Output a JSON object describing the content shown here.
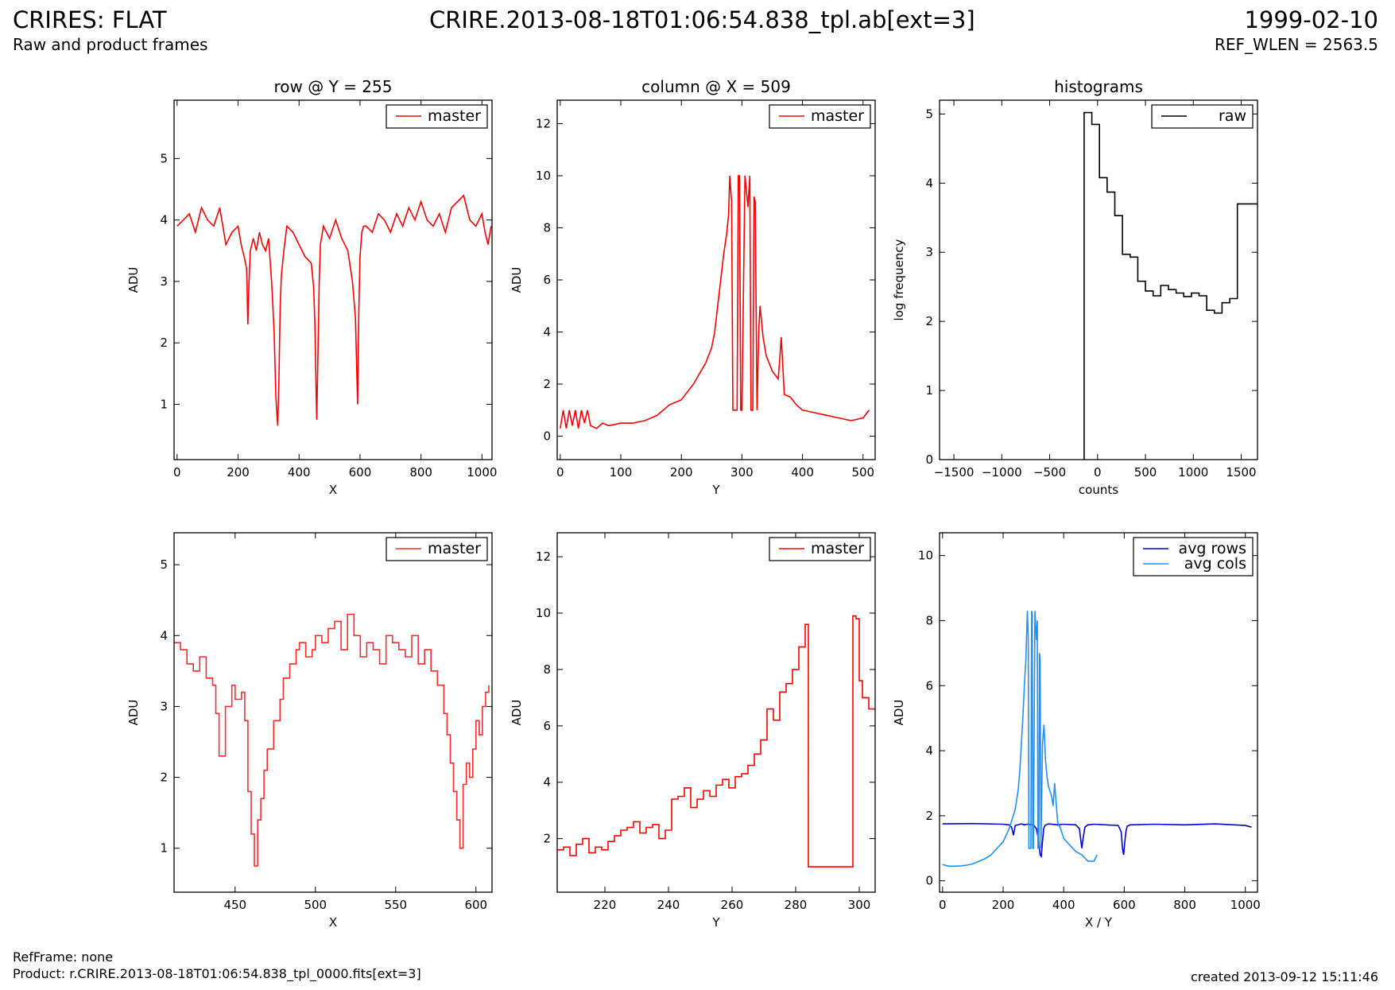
{
  "header": {
    "title": "CRIRES: FLAT",
    "subtitle": "Raw and product frames",
    "filename": "CRIRE.2013-08-18T01:06:54.838_tpl.ab[ext=3]",
    "date": "1999-02-10",
    "ref_wlen": "REF_WLEN = 2563.5"
  },
  "footer": {
    "refframe": "RefFrame: none",
    "product": "Product: r.CRIRE.2013-08-18T01:06:54.838_tpl_0000.fits[ext=3]",
    "created": "created 2013-09-12 15:11:46"
  },
  "colors": {
    "red": "#ff0000",
    "black": "#000000",
    "blue": "#0000dd",
    "lightblue": "#1e90ff"
  },
  "chart_data": [
    {
      "id": "row-full",
      "type": "line",
      "title": "row @ Y = 255",
      "xlabel": "X",
      "ylabel": "ADU",
      "xlim": [
        -10,
        1033
      ],
      "ylim": [
        0.1,
        5.95
      ],
      "xticks": [
        0,
        200,
        400,
        600,
        800,
        1000
      ],
      "yticks": [
        1,
        2,
        3,
        4,
        5
      ],
      "series": [
        {
          "name": "master",
          "color": "#ff0000",
          "step": false,
          "x": [
            0,
            20,
            40,
            60,
            80,
            100,
            120,
            140,
            160,
            180,
            200,
            210,
            220,
            228,
            232,
            236,
            240,
            250,
            260,
            270,
            280,
            290,
            300,
            310,
            318,
            324,
            330,
            334,
            338,
            342,
            350,
            360,
            380,
            400,
            420,
            440,
            448,
            452,
            456,
            458,
            462,
            466,
            470,
            480,
            500,
            520,
            540,
            560,
            575,
            585,
            592,
            596,
            600,
            606,
            612,
            620,
            640,
            660,
            680,
            700,
            720,
            740,
            760,
            780,
            800,
            820,
            840,
            860,
            880,
            900,
            920,
            940,
            960,
            980,
            1000,
            1010,
            1020,
            1030
          ],
          "y": [
            3.9,
            4.0,
            4.1,
            3.8,
            4.2,
            4.0,
            3.9,
            4.2,
            3.6,
            3.8,
            3.9,
            3.6,
            3.4,
            3.2,
            2.3,
            3.0,
            3.5,
            3.7,
            3.5,
            3.8,
            3.6,
            3.5,
            3.7,
            3.0,
            2.2,
            1.1,
            0.65,
            1.4,
            2.6,
            3.1,
            3.5,
            3.9,
            3.8,
            3.6,
            3.4,
            3.3,
            2.9,
            2.3,
            1.2,
            0.75,
            1.8,
            3.0,
            3.6,
            3.9,
            3.7,
            4.0,
            3.7,
            3.5,
            3.0,
            2.4,
            1.0,
            2.5,
            3.4,
            3.8,
            3.9,
            3.9,
            3.8,
            4.1,
            4.0,
            3.8,
            4.1,
            3.9,
            4.2,
            4.0,
            4.3,
            4.0,
            3.9,
            4.1,
            3.8,
            4.2,
            4.3,
            4.4,
            4.0,
            3.9,
            4.1,
            3.8,
            3.6,
            3.9
          ]
        }
      ],
      "legend": "top-right"
    },
    {
      "id": "col-full",
      "type": "line",
      "title": "column @ X = 509",
      "xlabel": "Y",
      "ylabel": "ADU",
      "xlim": [
        -5,
        520
      ],
      "ylim": [
        -0.9,
        12.9
      ],
      "xticks": [
        0,
        100,
        200,
        300,
        400,
        500
      ],
      "yticks": [
        0,
        2,
        4,
        6,
        8,
        10,
        12
      ],
      "series": [
        {
          "name": "master",
          "color": "#ff0000",
          "step": false,
          "x": [
            0,
            5,
            10,
            15,
            20,
            25,
            30,
            35,
            40,
            45,
            50,
            60,
            70,
            80,
            100,
            120,
            140,
            160,
            180,
            200,
            210,
            220,
            230,
            240,
            250,
            255,
            260,
            265,
            270,
            275,
            278,
            280,
            283,
            285,
            292,
            294,
            296,
            298,
            300,
            305,
            310,
            313,
            315,
            318,
            320,
            322,
            325,
            328,
            330,
            335,
            340,
            345,
            350,
            360,
            365,
            370,
            380,
            390,
            400,
            420,
            440,
            460,
            480,
            500,
            510
          ],
          "y": [
            0.3,
            1.0,
            0.3,
            1.0,
            0.4,
            1.0,
            0.3,
            1.0,
            0.5,
            1.0,
            0.4,
            0.3,
            0.5,
            0.4,
            0.5,
            0.5,
            0.6,
            0.8,
            1.2,
            1.4,
            1.7,
            2.0,
            2.4,
            2.8,
            3.4,
            4.0,
            5.0,
            6.0,
            7.0,
            7.8,
            8.5,
            10.0,
            9.0,
            1.0,
            1.0,
            10.0,
            10.0,
            1.0,
            1.0,
            10.0,
            8.8,
            10.0,
            1.0,
            1.0,
            9.2,
            9.0,
            1.0,
            4.2,
            5.0,
            3.8,
            3.1,
            2.8,
            2.5,
            2.2,
            3.8,
            1.6,
            1.5,
            1.2,
            1.0,
            0.9,
            0.8,
            0.7,
            0.6,
            0.7,
            1.0
          ]
        }
      ],
      "legend": "top-right"
    },
    {
      "id": "hist",
      "type": "line",
      "title": "histograms",
      "xlabel": "counts",
      "ylabel": "log frequency",
      "xlim": [
        -1650,
        1670
      ],
      "ylim": [
        0,
        5.2
      ],
      "xticks": [
        -1500,
        -1000,
        -500,
        0,
        500,
        1000,
        1500
      ],
      "yticks": [
        0,
        1,
        2,
        3,
        4,
        5
      ],
      "series": [
        {
          "name": "raw",
          "color": "#000000",
          "step": true,
          "x": [
            -140,
            -140,
            -60,
            20,
            100,
            180,
            260,
            340,
            420,
            500,
            580,
            660,
            740,
            820,
            900,
            980,
            1060,
            1140,
            1220,
            1300,
            1380,
            1460,
            1540,
            1620,
            1670
          ],
          "y": [
            0,
            5.02,
            4.85,
            4.08,
            3.87,
            3.53,
            2.97,
            2.93,
            2.58,
            2.44,
            2.37,
            2.52,
            2.46,
            2.41,
            2.36,
            2.41,
            2.37,
            2.16,
            2.12,
            2.27,
            2.33,
            3.7,
            3.7,
            3.7,
            3.7
          ]
        }
      ],
      "legend": "top-right"
    },
    {
      "id": "row-zoom",
      "type": "line",
      "title": "",
      "xlabel": "X",
      "ylabel": "ADU",
      "xlim": [
        412,
        610
      ],
      "ylim": [
        0.38,
        5.45
      ],
      "xticks": [
        450,
        500,
        550,
        600
      ],
      "yticks": [
        1,
        2,
        3,
        4,
        5
      ],
      "series": [
        {
          "name": "master",
          "color": "#ff2b2b",
          "step": true,
          "x": [
            412,
            416,
            420,
            424,
            428,
            432,
            436,
            438,
            440,
            444,
            448,
            450,
            454,
            456,
            458,
            460,
            462,
            464,
            466,
            468,
            470,
            474,
            478,
            480,
            484,
            488,
            490,
            494,
            498,
            500,
            504,
            508,
            512,
            516,
            520,
            524,
            528,
            532,
            536,
            540,
            544,
            548,
            552,
            556,
            560,
            564,
            568,
            572,
            576,
            580,
            582,
            584,
            586,
            588,
            590,
            592,
            594,
            596,
            598,
            600,
            602,
            604,
            606,
            608
          ],
          "y": [
            3.9,
            3.8,
            3.6,
            3.5,
            3.7,
            3.4,
            3.3,
            2.9,
            2.3,
            3.0,
            3.3,
            3.1,
            3.2,
            2.8,
            1.8,
            1.2,
            0.75,
            1.4,
            1.7,
            2.1,
            2.4,
            2.8,
            3.1,
            3.4,
            3.6,
            3.8,
            3.9,
            3.7,
            3.8,
            4.0,
            3.9,
            4.1,
            4.2,
            3.8,
            4.3,
            4.0,
            3.7,
            3.9,
            3.8,
            3.6,
            4.0,
            3.9,
            3.8,
            3.7,
            4.0,
            3.6,
            3.8,
            3.5,
            3.3,
            2.9,
            2.6,
            2.2,
            1.8,
            1.4,
            1.0,
            1.9,
            2.2,
            2.0,
            2.4,
            2.8,
            2.6,
            3.0,
            3.2,
            3.3
          ]
        }
      ],
      "legend": "top-right"
    },
    {
      "id": "col-zoom",
      "type": "line",
      "title": "",
      "xlabel": "Y",
      "ylabel": "ADU",
      "xlim": [
        205,
        305
      ],
      "ylim": [
        0.1,
        12.85
      ],
      "xticks": [
        220,
        240,
        260,
        280,
        300
      ],
      "yticks": [
        2,
        4,
        6,
        8,
        10,
        12
      ],
      "series": [
        {
          "name": "master",
          "color": "#ff0000",
          "step": true,
          "x": [
            205,
            207,
            209,
            211,
            213,
            215,
            217,
            219,
            221,
            223,
            225,
            227,
            229,
            231,
            233,
            235,
            237,
            239,
            241,
            243,
            245,
            247,
            249,
            251,
            253,
            255,
            257,
            259,
            261,
            263,
            265,
            267,
            269,
            271,
            273,
            275,
            277,
            279,
            281,
            283,
            284,
            298,
            299,
            300,
            301,
            303,
            305
          ],
          "y": [
            1.6,
            1.7,
            1.4,
            1.8,
            2.0,
            1.5,
            1.7,
            1.6,
            1.9,
            2.1,
            2.3,
            2.4,
            2.6,
            2.2,
            2.4,
            2.5,
            2.0,
            2.3,
            3.4,
            3.5,
            3.8,
            3.1,
            3.4,
            3.7,
            3.5,
            3.9,
            4.1,
            3.8,
            4.2,
            4.3,
            4.6,
            5.0,
            5.5,
            6.6,
            6.2,
            7.2,
            7.5,
            8.0,
            8.8,
            9.6,
            1.0,
            9.9,
            9.8,
            7.6,
            7.0,
            6.6,
            6.6
          ]
        }
      ],
      "legend": "top-right"
    },
    {
      "id": "avg",
      "type": "line",
      "title": "",
      "xlabel": "X / Y",
      "ylabel": "ADU",
      "xlim": [
        -10,
        1040
      ],
      "ylim": [
        -0.35,
        10.7
      ],
      "xticks": [
        0,
        200,
        400,
        600,
        800,
        1000
      ],
      "yticks": [
        0,
        2,
        4,
        6,
        8,
        10
      ],
      "series": [
        {
          "name": "avg rows",
          "color": "#0000dd",
          "step": false,
          "x": [
            0,
            100,
            200,
            220,
            228,
            234,
            240,
            260,
            270,
            280,
            290,
            300,
            310,
            318,
            322,
            326,
            330,
            334,
            338,
            342,
            350,
            380,
            400,
            440,
            452,
            456,
            460,
            464,
            470,
            480,
            500,
            540,
            580,
            590,
            594,
            598,
            602,
            606,
            610,
            620,
            700,
            800,
            900,
            1000,
            1020
          ],
          "y": [
            1.75,
            1.76,
            1.74,
            1.72,
            1.65,
            1.4,
            1.7,
            1.75,
            1.72,
            1.74,
            1.73,
            1.72,
            1.6,
            1.2,
            0.8,
            0.75,
            1.2,
            1.6,
            1.7,
            1.72,
            1.75,
            1.72,
            1.74,
            1.72,
            1.6,
            1.3,
            1.0,
            1.3,
            1.65,
            1.72,
            1.74,
            1.72,
            1.7,
            1.5,
            1.0,
            0.8,
            1.2,
            1.55,
            1.68,
            1.72,
            1.74,
            1.72,
            1.75,
            1.7,
            1.65
          ]
        },
        {
          "name": "avg cols",
          "color": "#1e90ff",
          "step": false,
          "x": [
            0,
            20,
            40,
            60,
            80,
            100,
            120,
            140,
            160,
            180,
            200,
            210,
            220,
            230,
            240,
            250,
            255,
            260,
            265,
            270,
            275,
            280,
            283,
            285,
            292,
            294,
            296,
            298,
            300,
            305,
            310,
            313,
            315,
            318,
            320,
            322,
            325,
            330,
            335,
            340,
            345,
            350,
            360,
            365,
            370,
            380,
            390,
            400,
            420,
            440,
            460,
            480,
            500,
            510
          ],
          "y": [
            0.5,
            0.45,
            0.45,
            0.46,
            0.48,
            0.52,
            0.6,
            0.68,
            0.8,
            1.0,
            1.2,
            1.4,
            1.6,
            1.9,
            2.2,
            2.8,
            3.4,
            4.2,
            5.0,
            6.0,
            6.8,
            8.3,
            7.5,
            1.0,
            1.0,
            8.3,
            8.2,
            1.0,
            1.0,
            8.3,
            7.4,
            8.0,
            1.0,
            1.0,
            7.0,
            6.8,
            1.0,
            4.2,
            4.8,
            3.7,
            3.2,
            2.9,
            2.6,
            2.3,
            3.0,
            1.8,
            1.6,
            1.3,
            1.1,
            0.9,
            0.8,
            0.6,
            0.6,
            0.8
          ]
        }
      ],
      "legend": "top-right"
    }
  ]
}
